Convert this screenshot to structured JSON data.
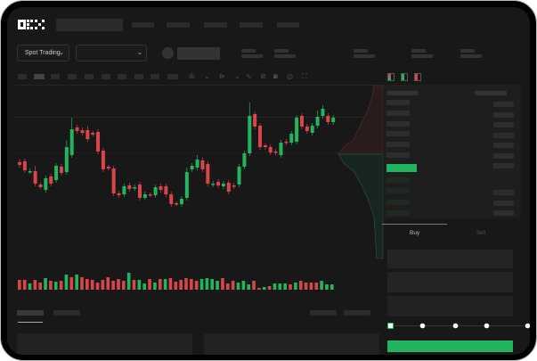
{
  "header": {
    "logo": "OKX"
  },
  "toolbar": {
    "market_selector": "Spot Trading",
    "market_selector_icon": "chevron-down-icon",
    "pair_selector_icon": "chevron-down-icon"
  },
  "chart_toolbar_icons": [
    "indicator-icon",
    "chevron-down-icon",
    "draw-icon",
    "chevron-down-icon",
    "line-icon",
    "ruler-icon",
    "camera-icon",
    "settings-icon",
    "fullscreen-icon"
  ],
  "orderbook": {
    "view_icons": [
      "orderbook-both-icon",
      "orderbook-bids-icon",
      "orderbook-asks-icon"
    ]
  },
  "trade_panel": {
    "tabs": [
      {
        "label": "Buy",
        "active": true
      },
      {
        "label": "Sell",
        "active": false
      }
    ],
    "slider_steps": [
      0,
      25,
      50,
      75,
      100
    ],
    "slider_value": 0
  },
  "colors": {
    "up": "#22b45e",
    "down": "#d9454b",
    "background": "#181818",
    "panel": "#1e1e1e"
  },
  "chart_data": {
    "type": "candlestick",
    "candles": [
      [
        68,
        71,
        62,
        65
      ],
      [
        69,
        72,
        56,
        59
      ],
      [
        57,
        61,
        55,
        58
      ],
      [
        58,
        64,
        41,
        44
      ],
      [
        43,
        45,
        38,
        40
      ],
      [
        37,
        53,
        34,
        50
      ],
      [
        52,
        55,
        41,
        44
      ],
      [
        48,
        67,
        45,
        64
      ],
      [
        63,
        66,
        53,
        56
      ],
      [
        57,
        93,
        54,
        85
      ],
      [
        76,
        118,
        73,
        105
      ],
      [
        107,
        110,
        100,
        103
      ],
      [
        104,
        107,
        98,
        101
      ],
      [
        104,
        109,
        91,
        94
      ],
      [
        101,
        103,
        97,
        99
      ],
      [
        102,
        105,
        77,
        80
      ],
      [
        81,
        84,
        57,
        60
      ],
      [
        63,
        65,
        59,
        61
      ],
      [
        61,
        64,
        30,
        33
      ],
      [
        33,
        36,
        28,
        31
      ],
      [
        32,
        44,
        29,
        41
      ],
      [
        42,
        45,
        35,
        38
      ],
      [
        39,
        43,
        36,
        40
      ],
      [
        43,
        46,
        25,
        28
      ],
      [
        28,
        35,
        26,
        32
      ],
      [
        32,
        34,
        29,
        31
      ],
      [
        31,
        43,
        28,
        40
      ],
      [
        41,
        44,
        34,
        37
      ],
      [
        41,
        44,
        29,
        32
      ],
      [
        32,
        35,
        18,
        21
      ],
      [
        22,
        24,
        19,
        21
      ],
      [
        21,
        30,
        18,
        27
      ],
      [
        28,
        62,
        25,
        57
      ],
      [
        60,
        67,
        57,
        64
      ],
      [
        62,
        76,
        59,
        71
      ],
      [
        70,
        73,
        57,
        60
      ],
      [
        66,
        69,
        41,
        44
      ],
      [
        43,
        47,
        40,
        44
      ],
      [
        46,
        49,
        39,
        42
      ],
      [
        41,
        47,
        38,
        44
      ],
      [
        45,
        48,
        32,
        35
      ],
      [
        42,
        45,
        38,
        41
      ],
      [
        43,
        66,
        40,
        63
      ],
      [
        63,
        81,
        60,
        78
      ],
      [
        78,
        135,
        75,
        120
      ],
      [
        122,
        125,
        105,
        108
      ],
      [
        109,
        112,
        82,
        85
      ],
      [
        87,
        89,
        82,
        85
      ],
      [
        85,
        88,
        76,
        79
      ],
      [
        80,
        83,
        76,
        79
      ],
      [
        76,
        93,
        73,
        90
      ],
      [
        91,
        94,
        87,
        90
      ],
      [
        90,
        103,
        87,
        100
      ],
      [
        91,
        121,
        88,
        118
      ],
      [
        120,
        123,
        105,
        108
      ],
      [
        108,
        111,
        100,
        103
      ],
      [
        101,
        112,
        98,
        109
      ],
      [
        109,
        126,
        106,
        119
      ],
      [
        120,
        132,
        117,
        128
      ],
      [
        120,
        123,
        110,
        113
      ],
      [
        113,
        121,
        110,
        118
      ]
    ],
    "volume": [
      [
        11,
        "down"
      ],
      [
        11,
        "down"
      ],
      [
        7,
        "up"
      ],
      [
        11,
        "down"
      ],
      [
        8,
        "down"
      ],
      [
        13,
        "up"
      ],
      [
        10,
        "down"
      ],
      [
        9,
        "up"
      ],
      [
        10,
        "down"
      ],
      [
        17,
        "up"
      ],
      [
        14,
        "down"
      ],
      [
        17,
        "up"
      ],
      [
        14,
        "down"
      ],
      [
        12,
        "down"
      ],
      [
        11,
        "down"
      ],
      [
        8,
        "down"
      ],
      [
        11,
        "down"
      ],
      [
        14,
        "down"
      ],
      [
        10,
        "down"
      ],
      [
        12,
        "down"
      ],
      [
        10,
        "down"
      ],
      [
        19,
        "up"
      ],
      [
        11,
        "down"
      ],
      [
        11,
        "up"
      ],
      [
        7,
        "up"
      ],
      [
        12,
        "down"
      ],
      [
        8,
        "up"
      ],
      [
        12,
        "down"
      ],
      [
        12,
        "up"
      ],
      [
        13,
        "down"
      ],
      [
        9,
        "down"
      ],
      [
        11,
        "down"
      ],
      [
        13,
        "down"
      ],
      [
        12,
        "down"
      ],
      [
        10,
        "down"
      ],
      [
        12,
        "up"
      ],
      [
        13,
        "up"
      ],
      [
        12,
        "up"
      ],
      [
        10,
        "up"
      ],
      [
        13,
        "down"
      ],
      [
        7,
        "down"
      ],
      [
        10,
        "down"
      ],
      [
        8,
        "up"
      ],
      [
        10,
        "up"
      ],
      [
        6,
        "up"
      ],
      [
        10,
        "down"
      ],
      [
        2,
        "down"
      ],
      [
        3,
        "up"
      ],
      [
        4,
        "down"
      ],
      [
        7,
        "up"
      ],
      [
        7,
        "up"
      ],
      [
        7,
        "up"
      ],
      [
        6,
        "down"
      ],
      [
        8,
        "up"
      ],
      [
        10,
        "down"
      ],
      [
        8,
        "down"
      ],
      [
        8,
        "down"
      ],
      [
        8,
        "down"
      ],
      [
        10,
        "up"
      ],
      [
        6,
        "up"
      ],
      [
        6,
        "up"
      ]
    ]
  }
}
